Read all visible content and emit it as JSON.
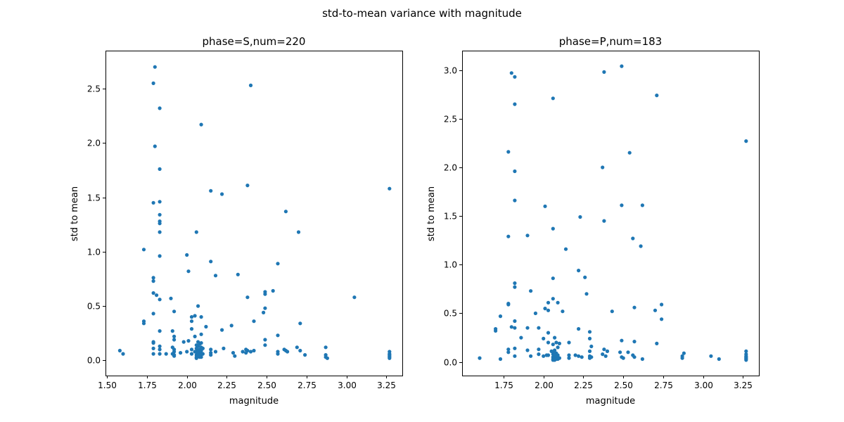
{
  "suptitle": "std-to-mean variance with magnitude",
  "marker_color": "#1f77b4",
  "chart_data": [
    {
      "type": "scatter",
      "title": "phase=S,num=220",
      "xlabel": "magnitude",
      "ylabel": "std to mean",
      "xlim": [
        1.49,
        3.35
      ],
      "ylim": [
        -0.14,
        2.85
      ],
      "xticks": [
        1.5,
        1.75,
        2.0,
        2.25,
        2.5,
        2.75,
        3.0,
        3.25
      ],
      "xtick_labels": [
        "1.50",
        "1.75",
        "2.00",
        "2.25",
        "2.50",
        "2.75",
        "3.00",
        "3.25"
      ],
      "yticks": [
        0.0,
        0.5,
        1.0,
        1.5,
        2.0,
        2.5
      ],
      "ytick_labels": [
        "0.0",
        "0.5",
        "1.0",
        "1.5",
        "2.0",
        "2.5"
      ],
      "points": [
        [
          1.58,
          0.09
        ],
        [
          1.6,
          0.06
        ],
        [
          1.73,
          1.02
        ],
        [
          1.73,
          0.36
        ],
        [
          1.73,
          0.34
        ],
        [
          1.79,
          2.55
        ],
        [
          1.79,
          1.45
        ],
        [
          1.79,
          0.76
        ],
        [
          1.79,
          0.73
        ],
        [
          1.79,
          0.62
        ],
        [
          1.79,
          0.43
        ],
        [
          1.79,
          0.17
        ],
        [
          1.79,
          0.16
        ],
        [
          1.79,
          0.11
        ],
        [
          1.79,
          0.06
        ],
        [
          1.8,
          2.7
        ],
        [
          1.8,
          1.97
        ],
        [
          1.81,
          0.6
        ],
        [
          1.83,
          2.32
        ],
        [
          1.83,
          1.76
        ],
        [
          1.83,
          1.46
        ],
        [
          1.83,
          1.34
        ],
        [
          1.83,
          1.28
        ],
        [
          1.83,
          1.26
        ],
        [
          1.83,
          1.18
        ],
        [
          1.83,
          0.96
        ],
        [
          1.83,
          0.56
        ],
        [
          1.83,
          0.27
        ],
        [
          1.83,
          0.13
        ],
        [
          1.83,
          0.1
        ],
        [
          1.83,
          0.06
        ],
        [
          1.87,
          0.06
        ],
        [
          1.9,
          0.57
        ],
        [
          1.91,
          0.27
        ],
        [
          1.91,
          0.12
        ],
        [
          1.91,
          0.06
        ],
        [
          1.92,
          0.45
        ],
        [
          1.92,
          0.22
        ],
        [
          1.92,
          0.19
        ],
        [
          1.92,
          0.1
        ],
        [
          1.92,
          0.08
        ],
        [
          1.92,
          0.05
        ],
        [
          1.92,
          0.04
        ],
        [
          1.96,
          0.07
        ],
        [
          1.98,
          0.17
        ],
        [
          2.0,
          0.97
        ],
        [
          2.0,
          0.08
        ],
        [
          2.01,
          0.82
        ],
        [
          2.01,
          0.18
        ],
        [
          2.03,
          0.4
        ],
        [
          2.03,
          0.36
        ],
        [
          2.03,
          0.29
        ],
        [
          2.03,
          0.1
        ],
        [
          2.03,
          0.06
        ],
        [
          2.05,
          0.41
        ],
        [
          2.05,
          0.22
        ],
        [
          2.05,
          0.08
        ],
        [
          2.06,
          1.18
        ],
        [
          2.06,
          0.14
        ],
        [
          2.06,
          0.11
        ],
        [
          2.06,
          0.08
        ],
        [
          2.06,
          0.05
        ],
        [
          2.06,
          0.03
        ],
        [
          2.06,
          0.02
        ],
        [
          2.07,
          0.5
        ],
        [
          2.07,
          0.17
        ],
        [
          2.07,
          0.13
        ],
        [
          2.07,
          0.09
        ],
        [
          2.07,
          0.06
        ],
        [
          2.07,
          0.04
        ],
        [
          2.08,
          0.15
        ],
        [
          2.08,
          0.1
        ],
        [
          2.08,
          0.07
        ],
        [
          2.08,
          0.05
        ],
        [
          2.08,
          0.04
        ],
        [
          2.08,
          0.03
        ],
        [
          2.09,
          2.17
        ],
        [
          2.09,
          0.4
        ],
        [
          2.09,
          0.24
        ],
        [
          2.09,
          0.16
        ],
        [
          2.09,
          0.12
        ],
        [
          2.09,
          0.09
        ],
        [
          2.09,
          0.07
        ],
        [
          2.09,
          0.05
        ],
        [
          2.09,
          0.03
        ],
        [
          2.1,
          0.11
        ],
        [
          2.1,
          0.06
        ],
        [
          2.12,
          0.31
        ],
        [
          2.15,
          1.56
        ],
        [
          2.15,
          0.91
        ],
        [
          2.15,
          0.1
        ],
        [
          2.15,
          0.07
        ],
        [
          2.15,
          0.05
        ],
        [
          2.18,
          0.78
        ],
        [
          2.18,
          0.08
        ],
        [
          2.22,
          1.53
        ],
        [
          2.22,
          0.28
        ],
        [
          2.23,
          0.11
        ],
        [
          2.28,
          0.32
        ],
        [
          2.29,
          0.07
        ],
        [
          2.3,
          0.04
        ],
        [
          2.32,
          0.79
        ],
        [
          2.35,
          0.08
        ],
        [
          2.37,
          0.1
        ],
        [
          2.37,
          0.07
        ],
        [
          2.38,
          1.61
        ],
        [
          2.38,
          0.58
        ],
        [
          2.38,
          0.09
        ],
        [
          2.4,
          2.53
        ],
        [
          2.4,
          0.08
        ],
        [
          2.42,
          0.36
        ],
        [
          2.42,
          0.09
        ],
        [
          2.48,
          0.44
        ],
        [
          2.49,
          0.63
        ],
        [
          2.49,
          0.61
        ],
        [
          2.49,
          0.48
        ],
        [
          2.49,
          0.19
        ],
        [
          2.49,
          0.14
        ],
        [
          2.54,
          0.64
        ],
        [
          2.57,
          0.89
        ],
        [
          2.57,
          0.23
        ],
        [
          2.57,
          0.08
        ],
        [
          2.57,
          0.06
        ],
        [
          2.61,
          0.1
        ],
        [
          2.62,
          1.37
        ],
        [
          2.62,
          0.09
        ],
        [
          2.63,
          0.08
        ],
        [
          2.69,
          0.12
        ],
        [
          2.7,
          1.18
        ],
        [
          2.71,
          0.34
        ],
        [
          2.71,
          0.09
        ],
        [
          2.74,
          0.05
        ],
        [
          2.87,
          0.12
        ],
        [
          2.87,
          0.05
        ],
        [
          2.87,
          0.03
        ],
        [
          2.88,
          0.02
        ],
        [
          3.05,
          0.58
        ],
        [
          3.27,
          1.58
        ],
        [
          3.27,
          0.08
        ],
        [
          3.27,
          0.06
        ],
        [
          3.27,
          0.05
        ],
        [
          3.27,
          0.04
        ],
        [
          3.27,
          0.03
        ],
        [
          3.27,
          0.02
        ]
      ]
    },
    {
      "type": "scatter",
      "title": "phase=P,num=183",
      "xlabel": "magnitude",
      "ylabel": "std to mean",
      "xlim": [
        1.49,
        3.35
      ],
      "ylim": [
        -0.14,
        3.2
      ],
      "xticks": [
        1.75,
        2.0,
        2.25,
        2.5,
        2.75,
        3.0,
        3.25
      ],
      "xtick_labels": [
        "1.75",
        "2.00",
        "2.25",
        "2.50",
        "2.75",
        "3.00",
        "3.25"
      ],
      "yticks": [
        0.0,
        0.5,
        1.0,
        1.5,
        2.0,
        2.5,
        3.0
      ],
      "ytick_labels": [
        "0.0",
        "0.5",
        "1.0",
        "1.5",
        "2.0",
        "2.5",
        "3.0"
      ],
      "points": [
        [
          1.6,
          0.04
        ],
        [
          1.7,
          0.34
        ],
        [
          1.7,
          0.32
        ],
        [
          1.73,
          0.47
        ],
        [
          1.73,
          0.03
        ],
        [
          1.78,
          2.16
        ],
        [
          1.78,
          1.29
        ],
        [
          1.78,
          0.6
        ],
        [
          1.78,
          0.59
        ],
        [
          1.78,
          0.13
        ],
        [
          1.78,
          0.1
        ],
        [
          1.8,
          2.97
        ],
        [
          1.8,
          0.36
        ],
        [
          1.82,
          2.93
        ],
        [
          1.82,
          2.65
        ],
        [
          1.82,
          1.96
        ],
        [
          1.82,
          1.66
        ],
        [
          1.82,
          0.81
        ],
        [
          1.82,
          0.77
        ],
        [
          1.82,
          0.42
        ],
        [
          1.82,
          0.35
        ],
        [
          1.82,
          0.14
        ],
        [
          1.82,
          0.06
        ],
        [
          1.86,
          0.25
        ],
        [
          1.9,
          1.3
        ],
        [
          1.9,
          0.35
        ],
        [
          1.9,
          0.12
        ],
        [
          1.92,
          0.73
        ],
        [
          1.92,
          0.06
        ],
        [
          1.95,
          0.5
        ],
        [
          1.97,
          0.35
        ],
        [
          1.97,
          0.13
        ],
        [
          1.97,
          0.08
        ],
        [
          2.0,
          0.24
        ],
        [
          2.0,
          0.06
        ],
        [
          2.01,
          1.6
        ],
        [
          2.01,
          0.55
        ],
        [
          2.02,
          0.07
        ],
        [
          2.03,
          0.61
        ],
        [
          2.03,
          0.53
        ],
        [
          2.03,
          0.3
        ],
        [
          2.03,
          0.2
        ],
        [
          2.03,
          0.07
        ],
        [
          2.05,
          0.11
        ],
        [
          2.06,
          2.71
        ],
        [
          2.06,
          1.37
        ],
        [
          2.06,
          0.86
        ],
        [
          2.06,
          0.65
        ],
        [
          2.06,
          0.18
        ],
        [
          2.06,
          0.1
        ],
        [
          2.06,
          0.08
        ],
        [
          2.06,
          0.05
        ],
        [
          2.06,
          0.03
        ],
        [
          2.06,
          0.02
        ],
        [
          2.07,
          0.25
        ],
        [
          2.07,
          0.12
        ],
        [
          2.07,
          0.06
        ],
        [
          2.07,
          0.04
        ],
        [
          2.07,
          0.02
        ],
        [
          2.08,
          0.2
        ],
        [
          2.08,
          0.09
        ],
        [
          2.08,
          0.05
        ],
        [
          2.08,
          0.03
        ],
        [
          2.09,
          0.61
        ],
        [
          2.09,
          0.15
        ],
        [
          2.09,
          0.07
        ],
        [
          2.09,
          0.03
        ],
        [
          2.1,
          0.19
        ],
        [
          2.1,
          0.04
        ],
        [
          2.12,
          0.52
        ],
        [
          2.14,
          1.16
        ],
        [
          2.16,
          0.2
        ],
        [
          2.16,
          0.07
        ],
        [
          2.16,
          0.04
        ],
        [
          2.2,
          0.07
        ],
        [
          2.22,
          0.94
        ],
        [
          2.22,
          0.34
        ],
        [
          2.22,
          0.06
        ],
        [
          2.23,
          1.49
        ],
        [
          2.24,
          0.05
        ],
        [
          2.26,
          0.87
        ],
        [
          2.27,
          0.7
        ],
        [
          2.29,
          0.31
        ],
        [
          2.29,
          0.24
        ],
        [
          2.29,
          0.11
        ],
        [
          2.29,
          0.06
        ],
        [
          2.29,
          0.04
        ],
        [
          2.3,
          0.16
        ],
        [
          2.3,
          0.05
        ],
        [
          2.37,
          2.0
        ],
        [
          2.37,
          0.08
        ],
        [
          2.38,
          2.98
        ],
        [
          2.38,
          1.45
        ],
        [
          2.38,
          0.13
        ],
        [
          2.39,
          0.06
        ],
        [
          2.4,
          0.11
        ],
        [
          2.43,
          0.52
        ],
        [
          2.48,
          0.1
        ],
        [
          2.49,
          3.04
        ],
        [
          2.49,
          1.61
        ],
        [
          2.49,
          0.22
        ],
        [
          2.49,
          0.05
        ],
        [
          2.5,
          0.04
        ],
        [
          2.54,
          2.15
        ],
        [
          2.53,
          0.1
        ],
        [
          2.56,
          1.27
        ],
        [
          2.56,
          0.07
        ],
        [
          2.57,
          0.56
        ],
        [
          2.57,
          0.21
        ],
        [
          2.57,
          0.05
        ],
        [
          2.61,
          1.19
        ],
        [
          2.62,
          1.61
        ],
        [
          2.62,
          0.03
        ],
        [
          2.7,
          0.53
        ],
        [
          2.71,
          2.74
        ],
        [
          2.71,
          0.19
        ],
        [
          2.74,
          0.59
        ],
        [
          2.74,
          0.44
        ],
        [
          2.87,
          0.06
        ],
        [
          2.87,
          0.04
        ],
        [
          2.88,
          0.09
        ],
        [
          3.05,
          0.06
        ],
        [
          3.1,
          0.03
        ],
        [
          3.27,
          2.27
        ],
        [
          3.27,
          0.11
        ],
        [
          3.27,
          0.08
        ],
        [
          3.27,
          0.06
        ],
        [
          3.27,
          0.05
        ],
        [
          3.27,
          0.04
        ],
        [
          3.27,
          0.03
        ],
        [
          3.27,
          0.02
        ]
      ]
    }
  ]
}
